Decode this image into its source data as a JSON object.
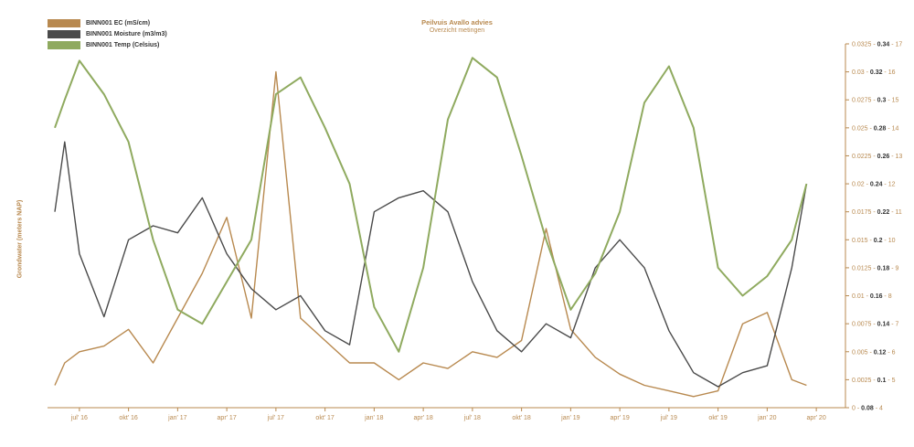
{
  "chart_data": {
    "type": "line",
    "title": "Peilvuis Avallo advies",
    "subtitle": "Overzicht metingen",
    "ylabel": "Grondwater (meters NAP)",
    "x_ticks": [
      "jul' 16",
      "okt' 16",
      "jan' 17",
      "apr' 17",
      "jul' 17",
      "okt' 17",
      "jan' 18",
      "apr' 18",
      "jul' 18",
      "okt' 18",
      "jan' 19",
      "apr' 19",
      "jul' 19",
      "okt' 19",
      "jan' 20",
      "apr' 20"
    ],
    "right_axis": {
      "ec_ticks": [
        "0",
        "0.0025",
        "0.005",
        "0.0075",
        "0.01",
        "0.0125",
        "0.015",
        "0.0175",
        "0.02",
        "0.0225",
        "0.025",
        "0.0275",
        "0.03",
        "0.0325"
      ],
      "moisture_ticks": [
        "0.08",
        "0.1",
        "0.12",
        "0.14",
        "0.16",
        "0.18",
        "0.2",
        "0.22",
        "0.24",
        "0.26",
        "0.28",
        "0.3",
        "0.32",
        "0.34"
      ],
      "temp_ticks": [
        "4",
        "5",
        "6",
        "7",
        "8",
        "9",
        "10",
        "11",
        "12",
        "13",
        "14",
        "15",
        "16",
        "17"
      ]
    },
    "series": [
      {
        "name": "BINN001 EC (mS/cm)",
        "color": "#b8894f",
        "x": [
          0,
          0.2,
          0.5,
          1,
          1.5,
          2,
          2.5,
          3,
          3.5,
          4,
          4.5,
          5,
          5.5,
          6,
          6.5,
          7,
          7.5,
          8,
          8.5,
          9,
          9.5,
          10,
          10.5,
          11,
          11.5,
          12,
          12.5,
          13,
          13.5,
          14,
          14.5,
          15,
          15.3
        ],
        "values": [
          0.002,
          0.004,
          0.005,
          0.0055,
          0.007,
          0.004,
          0.008,
          0.012,
          0.017,
          0.008,
          0.03,
          0.008,
          0.006,
          0.004,
          0.004,
          0.0025,
          0.004,
          0.0035,
          0.005,
          0.0045,
          0.006,
          0.016,
          0.007,
          0.0045,
          0.003,
          0.002,
          0.0015,
          0.001,
          0.0015,
          0.0075,
          0.0085,
          0.0025,
          0.002
        ]
      },
      {
        "name": "BINN001 Moisture (m3/m3)",
        "color": "#4a4a4a",
        "x": [
          0,
          0.2,
          0.5,
          1,
          1.5,
          2,
          2.5,
          3,
          3.5,
          4,
          4.5,
          5,
          5.5,
          6,
          6.5,
          7,
          7.5,
          8,
          8.5,
          9,
          9.5,
          10,
          10.5,
          11,
          11.5,
          12,
          12.5,
          13,
          13.5,
          14,
          14.5,
          15,
          15.3
        ],
        "values": [
          0.22,
          0.27,
          0.19,
          0.145,
          0.2,
          0.21,
          0.205,
          0.23,
          0.19,
          0.165,
          0.15,
          0.16,
          0.135,
          0.125,
          0.22,
          0.23,
          0.235,
          0.22,
          0.17,
          0.135,
          0.12,
          0.14,
          0.13,
          0.18,
          0.2,
          0.18,
          0.135,
          0.105,
          0.095,
          0.105,
          0.11,
          0.18,
          0.24
        ]
      },
      {
        "name": "BINN001 Temp (Celsius)",
        "color": "#8faa5f",
        "x": [
          0,
          0.2,
          0.5,
          1,
          1.5,
          2,
          2.5,
          3,
          3.5,
          4,
          4.5,
          5,
          5.5,
          6,
          6.5,
          7,
          7.5,
          8,
          8.5,
          9,
          9.5,
          10,
          10.5,
          11,
          11.5,
          12,
          12.5,
          13,
          13.5,
          14,
          14.5,
          15,
          15.3
        ],
        "values": [
          14,
          15,
          16.4,
          15.2,
          13.5,
          10,
          7.5,
          7,
          8.5,
          10,
          15.2,
          15.8,
          14,
          12,
          7.6,
          6,
          9,
          14.3,
          16.5,
          15.8,
          13,
          10,
          7.5,
          8.8,
          11,
          14.9,
          16.2,
          14,
          9,
          8,
          8.7,
          10,
          12
        ]
      }
    ],
    "x_range": [
      0,
      16
    ],
    "ylim_ec": [
      0,
      0.0325
    ]
  }
}
